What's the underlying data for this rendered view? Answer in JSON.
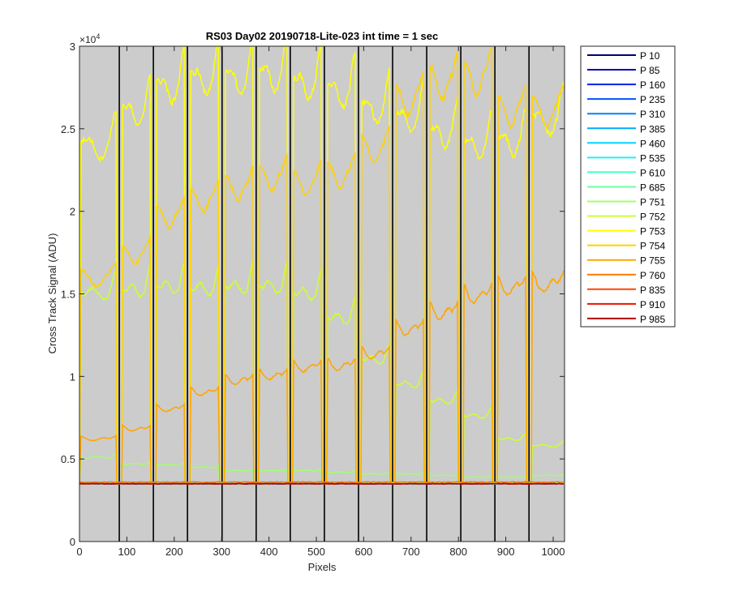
{
  "chart_data": {
    "type": "line",
    "title": "RS03 Day02 20190718-Lite-023 int time = 1 sec",
    "xlabel": "Pixels",
    "ylabel": "Cross Track Signal (ADU)",
    "y_exponent_label": "×10",
    "y_exponent_power": "4",
    "xlim": [
      0,
      1024
    ],
    "ylim": [
      0,
      30000
    ],
    "xticks": [
      0,
      100,
      200,
      300,
      400,
      500,
      600,
      700,
      800,
      900,
      1000
    ],
    "xtick_labels": [
      "0",
      "100",
      "200",
      "300",
      "400",
      "500",
      "600",
      "700",
      "800",
      "900",
      "1000"
    ],
    "yticks": [
      0,
      5000,
      10000,
      15000,
      20000,
      25000,
      30000
    ],
    "ytick_labels": [
      "0",
      "0.5",
      "1",
      "1.5",
      "2",
      "2.5",
      "3"
    ],
    "grid": false,
    "background_color": "#cccccc",
    "separator_lines_x": [
      84,
      156,
      228,
      301,
      373,
      445,
      517,
      589,
      661,
      733,
      805,
      877,
      949
    ],
    "baseline_value": 3500,
    "channels": [
      {
        "x0": 0,
        "x1": 79,
        "type": "first"
      },
      {
        "x0": 89,
        "x1": 151
      },
      {
        "x0": 161,
        "x1": 223
      },
      {
        "x0": 233,
        "x1": 296
      },
      {
        "x0": 306,
        "x1": 368
      },
      {
        "x0": 378,
        "x1": 440
      },
      {
        "x0": 450,
        "x1": 512
      },
      {
        "x0": 522,
        "x1": 584
      },
      {
        "x0": 594,
        "x1": 656
      },
      {
        "x0": 666,
        "x1": 728
      },
      {
        "x0": 738,
        "x1": 800
      },
      {
        "x0": 810,
        "x1": 872
      },
      {
        "x0": 882,
        "x1": 944
      },
      {
        "x0": 954,
        "x1": 1024,
        "type": "last"
      }
    ],
    "legend_location": "outside-right",
    "series": [
      {
        "name": "P 10",
        "color": "#000080",
        "levels": [
          3500,
          3500,
          3500,
          3500,
          3500,
          3500,
          3500,
          3500,
          3500,
          3500,
          3500,
          3500,
          3500,
          3500
        ]
      },
      {
        "name": "P 85",
        "color": "#0000b4",
        "levels": [
          3500,
          3500,
          3500,
          3500,
          3500,
          3500,
          3500,
          3500,
          3500,
          3500,
          3500,
          3500,
          3500,
          3500
        ]
      },
      {
        "name": "P 160",
        "color": "#0022e6",
        "levels": [
          3500,
          3500,
          3500,
          3500,
          3500,
          3500,
          3500,
          3500,
          3500,
          3500,
          3500,
          3500,
          3500,
          3500
        ]
      },
      {
        "name": "P 235",
        "color": "#0050ff",
        "levels": [
          3500,
          3500,
          3500,
          3500,
          3500,
          3500,
          3500,
          3500,
          3500,
          3500,
          3500,
          3500,
          3500,
          3500
        ]
      },
      {
        "name": "P 310",
        "color": "#0080ff",
        "levels": [
          3500,
          3500,
          3500,
          3500,
          3500,
          3500,
          3500,
          3500,
          3500,
          3500,
          3500,
          3500,
          3500,
          3500
        ]
      },
      {
        "name": "P 385",
        "color": "#00aaff",
        "levels": [
          3500,
          3500,
          3500,
          3500,
          3500,
          3500,
          3500,
          3500,
          3500,
          3500,
          3500,
          3500,
          3500,
          3500
        ]
      },
      {
        "name": "P 460",
        "color": "#00d4ff",
        "levels": [
          3500,
          3500,
          3500,
          3500,
          3500,
          3500,
          3500,
          3500,
          3500,
          3500,
          3500,
          3500,
          3500,
          3500
        ]
      },
      {
        "name": "P 535",
        "color": "#1ef0f0",
        "levels": [
          3500,
          3500,
          3500,
          3500,
          3500,
          3500,
          3500,
          3500,
          3500,
          3500,
          3500,
          3500,
          3500,
          3500
        ]
      },
      {
        "name": "P 610",
        "color": "#46ffc8",
        "levels": [
          3500,
          3500,
          3500,
          3500,
          3500,
          3500,
          3500,
          3500,
          3500,
          3500,
          3500,
          3500,
          3500,
          3500
        ]
      },
      {
        "name": "P 685",
        "color": "#6cffa0",
        "levels": [
          3500,
          3500,
          3500,
          3500,
          3500,
          3500,
          3500,
          3500,
          3550,
          3550,
          3550,
          3550,
          3550,
          3550
        ]
      },
      {
        "name": "P 751",
        "color": "#a0ff6e",
        "levels": [
          5100,
          4700,
          4650,
          4500,
          4300,
          4300,
          4300,
          4200,
          4100,
          4100,
          4000,
          3900,
          3900,
          4000
        ]
      },
      {
        "name": "P 752",
        "color": "#ccff32",
        "levels": [
          15000,
          15200,
          15400,
          15300,
          15400,
          15400,
          15000,
          13500,
          11000,
          9500,
          8500,
          7600,
          6200,
          5800
        ]
      },
      {
        "name": "P 753",
        "color": "#ffff00",
        "levels": [
          23800,
          25800,
          27300,
          27800,
          27800,
          28000,
          27500,
          27000,
          26000,
          25400,
          24500,
          23800,
          24000,
          25300
        ]
      },
      {
        "name": "P 754",
        "color": "#ffd200",
        "levels": [
          15800,
          17200,
          19500,
          20500,
          21200,
          21800,
          21500,
          22000,
          23500,
          26500,
          27500,
          27800,
          25800,
          25800
        ]
      },
      {
        "name": "P 755",
        "color": "#ffa500",
        "levels": [
          6200,
          6800,
          8000,
          9000,
          9700,
          10000,
          10500,
          10600,
          11300,
          12800,
          13800,
          14800,
          15300,
          15500
        ]
      },
      {
        "name": "P 760",
        "color": "#ff7800",
        "levels": [
          3600,
          3600,
          3600,
          3600,
          3600,
          3600,
          3600,
          3600,
          3600,
          3600,
          3600,
          3600,
          3600,
          3600
        ]
      },
      {
        "name": "P 835",
        "color": "#ff4600",
        "levels": [
          3500,
          3500,
          3500,
          3500,
          3500,
          3500,
          3500,
          3500,
          3500,
          3500,
          3500,
          3500,
          3500,
          3500
        ]
      },
      {
        "name": "P 910",
        "color": "#e61400",
        "levels": [
          3500,
          3500,
          3500,
          3500,
          3500,
          3500,
          3500,
          3500,
          3500,
          3500,
          3500,
          3500,
          3500,
          3500
        ]
      },
      {
        "name": "P 985",
        "color": "#b40000",
        "levels": [
          3500,
          3500,
          3500,
          3500,
          3500,
          3500,
          3500,
          3500,
          3500,
          3500,
          3500,
          3500,
          3500,
          3500
        ]
      }
    ]
  }
}
